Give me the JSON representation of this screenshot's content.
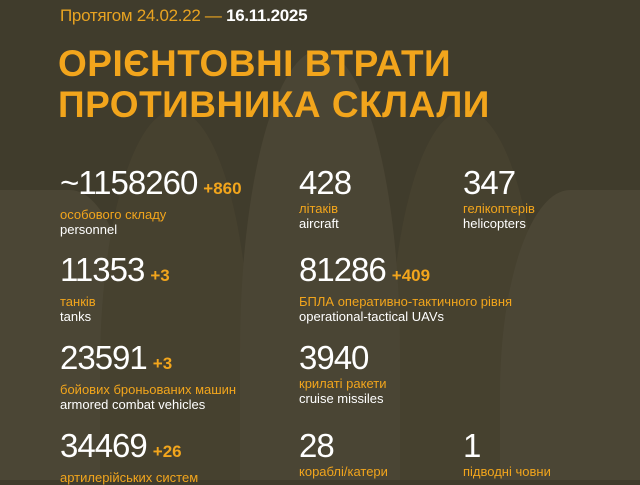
{
  "header": {
    "period_prefix": "Протягом 24.02.22 —",
    "period_end": "16.11.2025",
    "title_line1": "ОРІЄНТОВНІ ВТРАТИ",
    "title_line2": "ПРОТИВНИКА СКЛАЛИ"
  },
  "colors": {
    "background": "#403c2c",
    "accent": "#f2a51c",
    "text": "#ffffff"
  },
  "stats": [
    {
      "value": "~1158260",
      "delta": "+860",
      "ua": "особового складу",
      "en": "personnel"
    },
    {
      "value": "428",
      "delta": "",
      "ua": "літаків",
      "en": "aircraft"
    },
    {
      "value": "347",
      "delta": "",
      "ua": "гелікоптерів",
      "en": "helicopters"
    },
    {
      "value": "11353",
      "delta": "+3",
      "ua": "танків",
      "en": "tanks"
    },
    {
      "value": "81286",
      "delta": "+409",
      "ua": "БПЛА оперативно-тактичного рівня",
      "en": "operational-tactical UAVs"
    },
    {
      "value": "23591",
      "delta": "+3",
      "ua": "бойових броньованих машин",
      "en": "armored combat vehicles"
    },
    {
      "value": "3940",
      "delta": "",
      "ua": "крилаті ракети",
      "en": "cruise missiles"
    },
    {
      "value": "34469",
      "delta": "+26",
      "ua": "артилерійських систем",
      "en": ""
    },
    {
      "value": "28",
      "delta": "",
      "ua": "кораблі/катери",
      "en": ""
    },
    {
      "value": "1",
      "delta": "",
      "ua": "підводні човни",
      "en": ""
    }
  ]
}
